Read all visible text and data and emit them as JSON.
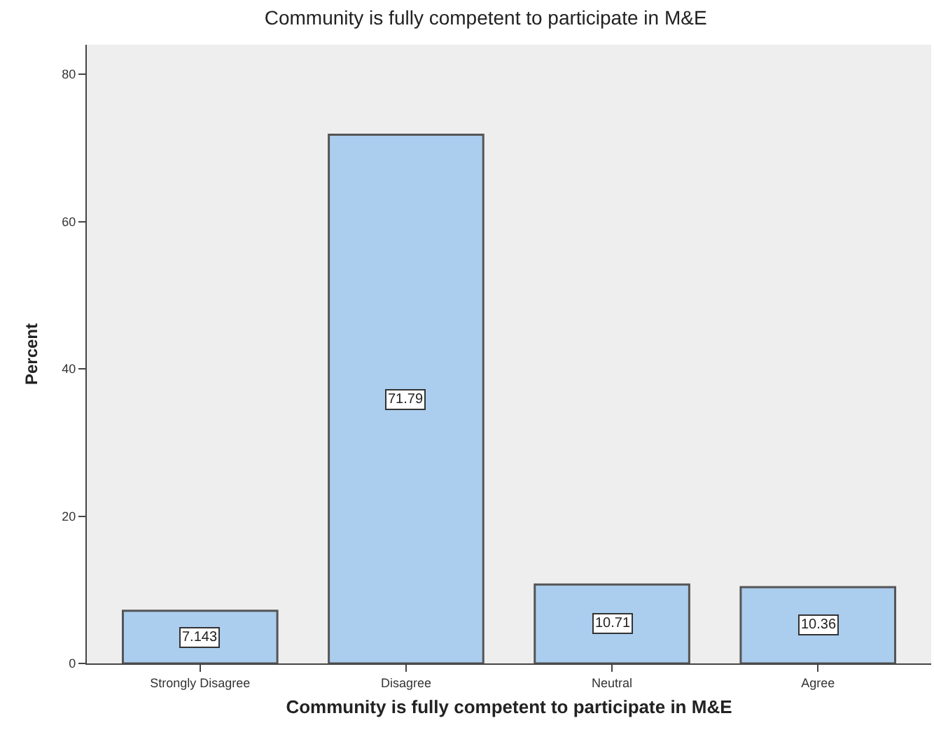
{
  "chart_data": {
    "type": "bar",
    "title": "Community is fully competent to participate in M&E",
    "xlabel": "Community is fully competent to participate in M&E",
    "ylabel": "Percent",
    "categories": [
      "Strongly Disagree",
      "Disagree",
      "Neutral",
      "Agree"
    ],
    "values": [
      7.143,
      71.79,
      10.71,
      10.36
    ],
    "color": "#abcdee",
    "ylim": [
      0,
      84
    ],
    "yticks": [
      0,
      20,
      40,
      60,
      80
    ],
    "grid": false,
    "legend": false,
    "data_labels": true
  }
}
